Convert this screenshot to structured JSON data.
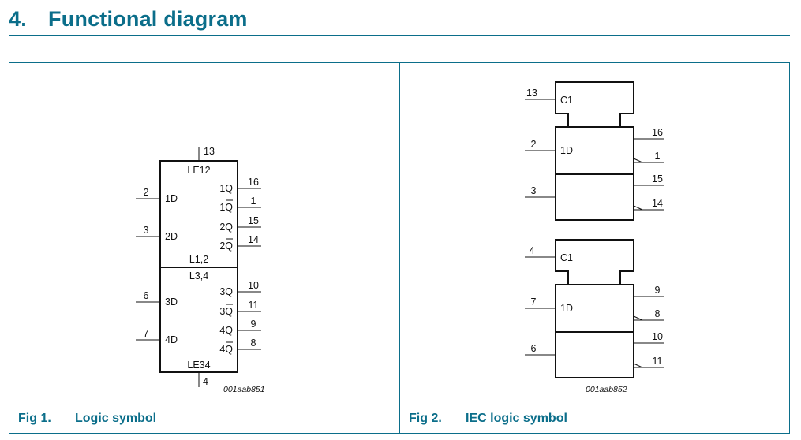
{
  "heading": {
    "number": "4.",
    "title": "Functional diagram"
  },
  "colors": {
    "accent": "#0b6e8a",
    "line": "#111111"
  },
  "fig1": {
    "caption_number": "Fig 1.",
    "caption": "Logic symbol",
    "code": "001aab851",
    "top_pin": "13",
    "bottom_pin": "4",
    "label_top": "LE12",
    "label_mid_upper": "L1,2",
    "label_mid_lower": "L3,4",
    "label_bottom": "LE34",
    "inputs": [
      {
        "pin": "2",
        "label": "1D"
      },
      {
        "pin": "3",
        "label": "2D"
      },
      {
        "pin": "6",
        "label": "3D"
      },
      {
        "pin": "7",
        "label": "4D"
      }
    ],
    "outputs": [
      {
        "pin": "16",
        "num": "1",
        "sig": "Q",
        "inverted": false
      },
      {
        "pin": "1",
        "num": "1",
        "sig": "Q",
        "inverted": true
      },
      {
        "pin": "15",
        "num": "2",
        "sig": "Q",
        "inverted": false
      },
      {
        "pin": "14",
        "num": "2",
        "sig": "Q",
        "inverted": true
      },
      {
        "pin": "10",
        "num": "3",
        "sig": "Q",
        "inverted": false
      },
      {
        "pin": "11",
        "num": "3",
        "sig": "Q",
        "inverted": true
      },
      {
        "pin": "9",
        "num": "4",
        "sig": "Q",
        "inverted": false
      },
      {
        "pin": "8",
        "num": "4",
        "sig": "Q",
        "inverted": true
      }
    ]
  },
  "fig2": {
    "caption_number": "Fig 2.",
    "caption": "IEC logic symbol",
    "code": "001aab852",
    "units": [
      {
        "clock_pin": "13",
        "clock_label": "C1",
        "d_label": "1D",
        "inputs": [
          "2",
          "3"
        ],
        "outputs": [
          {
            "pin": "16",
            "inverted": false
          },
          {
            "pin": "1",
            "inverted": true
          },
          {
            "pin": "15",
            "inverted": false
          },
          {
            "pin": "14",
            "inverted": true
          }
        ]
      },
      {
        "clock_pin": "4",
        "clock_label": "C1",
        "d_label": "1D",
        "inputs": [
          "7",
          "6"
        ],
        "outputs": [
          {
            "pin": "9",
            "inverted": false
          },
          {
            "pin": "8",
            "inverted": true
          },
          {
            "pin": "10",
            "inverted": false
          },
          {
            "pin": "11",
            "inverted": true
          }
        ]
      }
    ]
  }
}
